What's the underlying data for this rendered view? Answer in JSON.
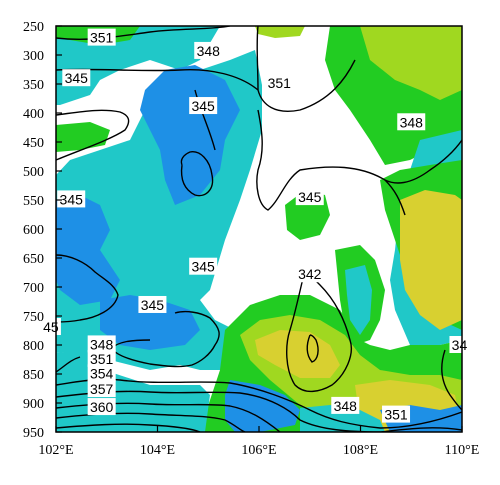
{
  "chart_data": {
    "type": "contour",
    "title": "",
    "xlabel": "",
    "ylabel": "",
    "x_range": [
      102,
      110
    ],
    "y_range": [
      250,
      950
    ],
    "y_direction": "increasing-downward",
    "x_ticks": [
      "102°E",
      "104°E",
      "106°E",
      "108°E",
      "110°E"
    ],
    "y_ticks": [
      "250",
      "300",
      "350",
      "400",
      "450",
      "500",
      "550",
      "600",
      "650",
      "700",
      "750",
      "800",
      "850",
      "900",
      "950"
    ],
    "shading_colors": {
      "blue": "#1E90E6",
      "cyan": "#20C8C8",
      "green": "#22CC22",
      "yellowgreen": "#A0D820",
      "yellow": "#D8D030",
      "lime": "#30D830"
    },
    "contour_labels": [
      {
        "text": "351",
        "x": 102.9,
        "y": 270
      },
      {
        "text": "348",
        "x": 105.0,
        "y": 293
      },
      {
        "text": "345",
        "x": 102.4,
        "y": 340
      },
      {
        "text": "351",
        "x": 106.4,
        "y": 348
      },
      {
        "text": "345",
        "x": 104.9,
        "y": 388
      },
      {
        "text": "348",
        "x": 109.0,
        "y": 416
      },
      {
        "text": "345",
        "x": 102.3,
        "y": 549
      },
      {
        "text": "345",
        "x": 107.0,
        "y": 545
      },
      {
        "text": "345",
        "x": 104.9,
        "y": 665
      },
      {
        "text": "342",
        "x": 107.0,
        "y": 678
      },
      {
        "text": "345",
        "x": 103.9,
        "y": 731
      },
      {
        "text": "45",
        "x": 101.9,
        "y": 769
      },
      {
        "text": "348",
        "x": 102.9,
        "y": 799
      },
      {
        "text": "351",
        "x": 102.9,
        "y": 824
      },
      {
        "text": "34",
        "x": 109.95,
        "y": 800
      },
      {
        "text": "354",
        "x": 102.9,
        "y": 849
      },
      {
        "text": "357",
        "x": 102.9,
        "y": 876
      },
      {
        "text": "360",
        "x": 102.9,
        "y": 907
      },
      {
        "text": "348",
        "x": 107.7,
        "y": 905
      },
      {
        "text": "351",
        "x": 108.7,
        "y": 920
      }
    ]
  }
}
